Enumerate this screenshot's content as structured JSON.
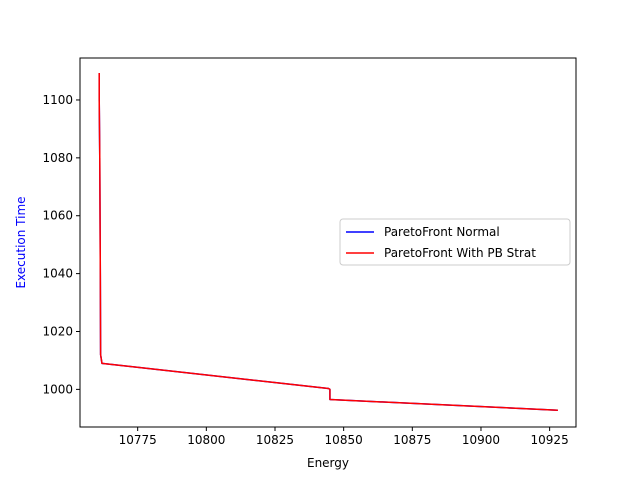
{
  "chart_data": {
    "type": "line",
    "xlabel": "Energy",
    "ylabel": "Execution Time",
    "ylabel_color": "#0000ff",
    "xlim": [
      10754,
      10934.6
    ],
    "ylim": [
      987.0,
      1114.5
    ],
    "x_ticks": [
      10775,
      10800,
      10825,
      10850,
      10875,
      10900,
      10925
    ],
    "x_tick_labels": [
      "10775",
      "10800",
      "10825",
      "10850",
      "10875",
      "10900",
      "10925"
    ],
    "y_ticks": [
      1000,
      1020,
      1040,
      1060,
      1080,
      1100
    ],
    "y_tick_labels": [
      "1000",
      "1020",
      "1040",
      "1060",
      "1080",
      "1100"
    ],
    "grid": false,
    "legend_position": "center-right",
    "series": [
      {
        "name": "ParetoFront Normal",
        "color": "#0000ff",
        "x": [
          10761,
          10761,
          10761.2,
          10761.4,
          10761.5,
          10762,
          10844.5,
          10845,
          10845,
          10928
        ],
        "y": [
          1109.3,
          1100,
          1080,
          1040,
          1012,
          1009,
          1000.3,
          1000,
          996.5,
          992.8
        ]
      },
      {
        "name": "ParetoFront With PB Strat",
        "color": "#ff0000",
        "x": [
          10761,
          10761,
          10761.2,
          10761.4,
          10761.5,
          10762,
          10844.5,
          10845,
          10845,
          10928
        ],
        "y": [
          1109.3,
          1100,
          1080,
          1040,
          1012,
          1009,
          1000.3,
          1000,
          996.5,
          992.8
        ]
      }
    ]
  }
}
